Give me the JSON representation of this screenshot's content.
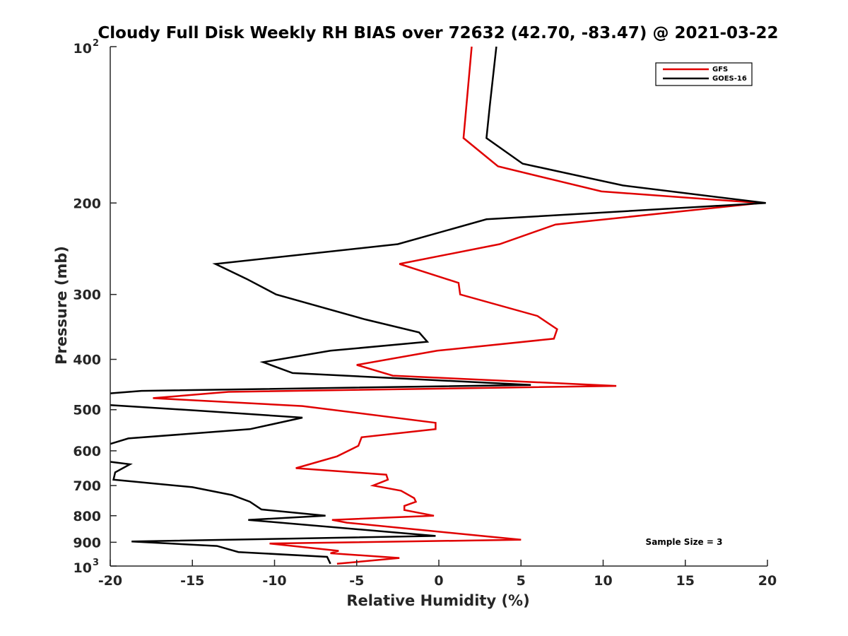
{
  "chart_data": {
    "type": "line",
    "title": "Cloudy Full Disk Weekly RH BIAS over 72632 (42.70, -83.47) @ 2021-03-22",
    "xlabel": "Relative Humidity (%)",
    "ylabel": "Pressure (mb)",
    "xlim": [
      -20,
      20
    ],
    "ylim": [
      100,
      1000
    ],
    "y_scale": "log",
    "y_reversed": true,
    "grid": false,
    "legend_position": "top-right",
    "x_ticks": [
      "-20",
      "-15",
      "-10",
      "-5",
      "0",
      "5",
      "10",
      "15",
      "20"
    ],
    "y_ticks": [
      {
        "value": 100,
        "base": "10",
        "exp": "2"
      },
      {
        "value": 200,
        "label": "200"
      },
      {
        "value": 300,
        "label": "300"
      },
      {
        "value": 400,
        "label": "400"
      },
      {
        "value": 500,
        "label": "500"
      },
      {
        "value": 600,
        "label": "600"
      },
      {
        "value": 700,
        "label": "700"
      },
      {
        "value": 800,
        "label": "800"
      },
      {
        "value": 900,
        "label": "900"
      },
      {
        "value": 1000,
        "base": "10",
        "exp": "3"
      }
    ],
    "annotation": "Sample Size = 3",
    "series": [
      {
        "name": "GFS",
        "color": "#e00000",
        "points": [
          [
            2.0,
            100
          ],
          [
            1.5,
            150
          ],
          [
            3.6,
            170
          ],
          [
            9.9,
            190
          ],
          [
            19.6,
            200
          ],
          [
            7.1,
            220
          ],
          [
            3.7,
            240
          ],
          [
            -2.4,
            262
          ],
          [
            1.2,
            285
          ],
          [
            1.3,
            300
          ],
          [
            6.0,
            330
          ],
          [
            7.2,
            350
          ],
          [
            7.0,
            365
          ],
          [
            -0.1,
            385
          ],
          [
            -5.0,
            410
          ],
          [
            -2.8,
            430
          ],
          [
            10.8,
            450
          ],
          [
            -12.8,
            462
          ],
          [
            -17.4,
            475
          ],
          [
            -8.3,
            492
          ],
          [
            -0.2,
            530
          ],
          [
            -0.2,
            545
          ],
          [
            -4.7,
            565
          ],
          [
            -4.9,
            587
          ],
          [
            -6.2,
            615
          ],
          [
            -8.7,
            648
          ],
          [
            -3.2,
            667
          ],
          [
            -3.1,
            682
          ],
          [
            -4.0,
            700
          ],
          [
            -2.3,
            716
          ],
          [
            -1.5,
            740
          ],
          [
            -1.4,
            752
          ],
          [
            -2.1,
            766
          ],
          [
            -2.1,
            780
          ],
          [
            -0.3,
            800
          ],
          [
            -6.5,
            815
          ],
          [
            -5.6,
            825
          ],
          [
            5.0,
            890
          ],
          [
            -10.3,
            905
          ],
          [
            -6.1,
            935
          ],
          [
            -6.6,
            945
          ],
          [
            -2.4,
            965
          ],
          [
            -6.2,
            990
          ]
        ]
      },
      {
        "name": "GOES-16",
        "color": "#000000",
        "points": [
          [
            3.5,
            100
          ],
          [
            3.1,
            130
          ],
          [
            2.9,
            150
          ],
          [
            5.1,
            168
          ],
          [
            11.2,
            185
          ],
          [
            19.9,
            200
          ],
          [
            2.9,
            215
          ],
          [
            -2.5,
            240
          ],
          [
            -13.6,
            262
          ],
          [
            -11.7,
            280
          ],
          [
            -9.9,
            300
          ],
          [
            -4.5,
            335
          ],
          [
            -1.2,
            355
          ],
          [
            -0.7,
            370
          ],
          [
            -6.6,
            385
          ],
          [
            -10.7,
            405
          ],
          [
            -8.9,
            425
          ],
          [
            5.6,
            448
          ],
          [
            -18.1,
            460
          ],
          [
            -20.0,
            465
          ]
        ],
        "segments": [
          [
            [
              -20.0,
              490
            ],
            [
              -14.7,
              502
            ],
            [
              -8.3,
              518
            ],
            [
              -11.5,
              545
            ],
            [
              -18.9,
              568
            ],
            [
              -20.0,
              582
            ]
          ],
          [
            [
              -20.0,
              630
            ],
            [
              -18.8,
              637
            ],
            [
              -19.7,
              660
            ],
            [
              -19.8,
              682
            ],
            [
              -15.0,
              705
            ],
            [
              -12.6,
              730
            ],
            [
              -11.5,
              752
            ],
            [
              -10.8,
              778
            ],
            [
              -6.9,
              800
            ],
            [
              -11.6,
              815
            ],
            [
              -0.2,
              875
            ],
            [
              -18.7,
              897
            ],
            [
              -13.5,
              915
            ],
            [
              -12.2,
              940
            ],
            [
              -6.8,
              960
            ],
            [
              -6.6,
              990
            ]
          ]
        ]
      }
    ]
  }
}
